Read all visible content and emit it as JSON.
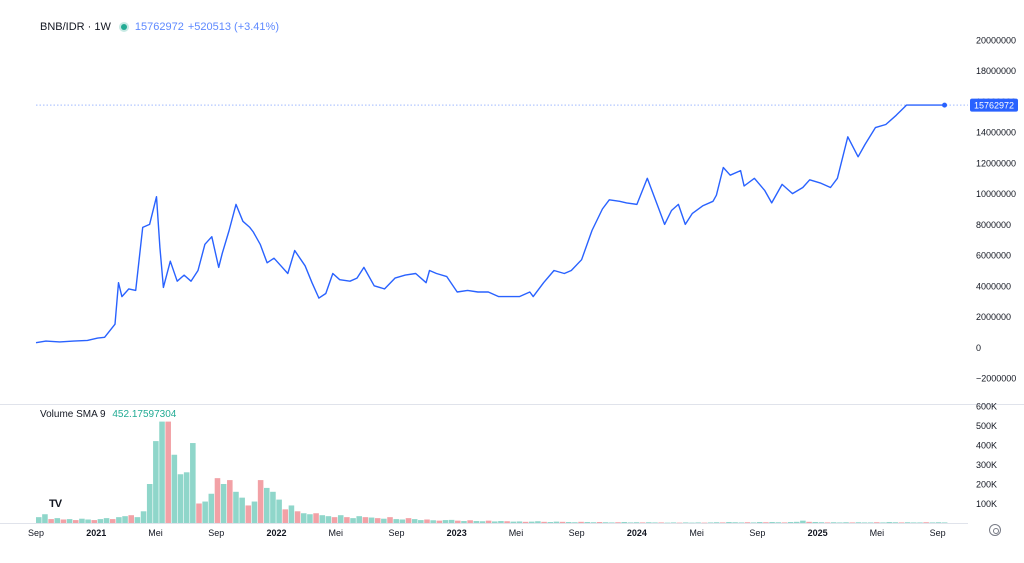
{
  "legend": {
    "symbol": "BNB/IDR · 1W",
    "price": "15762972",
    "change": "+520513 (+3.41%)"
  },
  "volume_legend": {
    "label": "Volume SMA 9",
    "value": "452.17597304"
  },
  "logo_text": "TV",
  "colors": {
    "line": "#2962ff",
    "volume_up": "#8fd6ca",
    "volume_down": "#f2a1a6",
    "price_label_bg": "#2962ff",
    "axis_text": "#131722"
  },
  "chart_data": [
    {
      "type": "line",
      "series": [
        {
          "x": [
            "2020-09-01",
            "2020-09-21",
            "2020-10-19",
            "2020-11-16",
            "2020-12-14",
            "2021-01-04",
            "2021-01-18",
            "2021-02-08",
            "2021-02-15",
            "2021-02-22",
            "2021-03-08",
            "2021-03-22",
            "2021-04-05",
            "2021-04-19",
            "2021-05-03",
            "2021-05-10",
            "2021-05-17",
            "2021-05-31",
            "2021-06-14",
            "2021-06-28",
            "2021-07-12",
            "2021-07-26",
            "2021-08-09",
            "2021-08-23",
            "2021-09-06",
            "2021-09-13",
            "2021-09-27",
            "2021-10-11",
            "2021-10-25",
            "2021-11-08",
            "2021-11-15",
            "2021-11-29",
            "2021-12-13",
            "2021-12-27",
            "2022-01-10",
            "2022-01-24",
            "2022-02-07",
            "2022-02-28",
            "2022-03-14",
            "2022-03-28",
            "2022-04-11",
            "2022-04-25",
            "2022-05-09",
            "2022-05-30",
            "2022-06-13",
            "2022-06-27",
            "2022-07-18",
            "2022-08-08",
            "2022-08-29",
            "2022-09-19",
            "2022-10-10",
            "2022-10-31",
            "2022-11-07",
            "2022-11-21",
            "2022-12-12",
            "2023-01-02",
            "2023-01-23",
            "2023-02-13",
            "2023-03-06",
            "2023-03-27",
            "2023-04-17",
            "2023-05-08",
            "2023-05-29",
            "2023-06-05",
            "2023-06-26",
            "2023-07-17",
            "2023-08-07",
            "2023-08-21",
            "2023-09-11",
            "2023-10-02",
            "2023-10-23",
            "2023-11-06",
            "2023-11-27",
            "2023-12-11",
            "2024-01-01",
            "2024-01-22",
            "2024-02-12",
            "2024-02-26",
            "2024-03-11",
            "2024-03-25",
            "2024-04-08",
            "2024-04-22",
            "2024-05-13",
            "2024-06-03",
            "2024-06-10",
            "2024-06-24",
            "2024-07-08",
            "2024-07-29",
            "2024-08-05",
            "2024-08-26",
            "2024-09-16",
            "2024-09-30",
            "2024-10-21",
            "2024-11-11",
            "2024-12-02",
            "2024-12-16",
            "2025-01-06",
            "2025-01-27",
            "2025-02-10",
            "2025-03-03",
            "2025-03-24",
            "2025-04-07",
            "2025-04-28",
            "2025-05-19",
            "2025-06-09",
            "2025-06-30",
            "2025-07-14",
            "2025-08-04",
            "2025-08-18",
            "2025-09-08",
            "2025-09-15"
          ],
          "y": [
            300000,
            400000,
            350000,
            400000,
            450000,
            600000,
            650000,
            1500000,
            4200000,
            3300000,
            3800000,
            3700000,
            7800000,
            8000000,
            9800000,
            6500000,
            3900000,
            5600000,
            4300000,
            4700000,
            4300000,
            5000000,
            6700000,
            7200000,
            5200000,
            6100000,
            7600000,
            9300000,
            8200000,
            7800000,
            7500000,
            6700000,
            5500000,
            5800000,
            5300000,
            4800000,
            6300000,
            5300000,
            4200000,
            3200000,
            3500000,
            4800000,
            4400000,
            4300000,
            4500000,
            5200000,
            4000000,
            3800000,
            4500000,
            4700000,
            4800000,
            4200000,
            5000000,
            4800000,
            4600000,
            3600000,
            3700000,
            3600000,
            3600000,
            3300000,
            3300000,
            3300000,
            3600000,
            3300000,
            4200000,
            5000000,
            4800000,
            5000000,
            5700000,
            7600000,
            9000000,
            9600000,
            9500000,
            9400000,
            9300000,
            11000000,
            9200000,
            8000000,
            8900000,
            9300000,
            8000000,
            8700000,
            9200000,
            9500000,
            9900000,
            11700000,
            11200000,
            11500000,
            10500000,
            11000000,
            10200000,
            9400000,
            10600000,
            10000000,
            10400000,
            10900000,
            10700000,
            10400000,
            11000000,
            13700000,
            12400000,
            13200000,
            14300000,
            14500000,
            15100000,
            15762972,
            15762972,
            15762972,
            15762972,
            15762972,
            15762972
          ],
          "values_note": ""
        }
      ],
      "y_ticks": [
        "20000000",
        "18000000",
        "16000000",
        "14000000",
        "12000000",
        "10000000",
        "8000000",
        "6000000",
        "4000000",
        "2000000",
        "0",
        "−2000000"
      ],
      "ylim": [
        -2000000,
        20000000
      ],
      "last_price_label": "15762972",
      "last_value": 15762972
    },
    {
      "type": "bar",
      "y_ticks": [
        "600K",
        "500K",
        "400K",
        "300K",
        "200K",
        "100K"
      ],
      "ylim": [
        0,
        600000
      ],
      "bars": [
        {
          "v": 30000,
          "d": false
        },
        {
          "v": 45000,
          "d": false
        },
        {
          "v": 20000,
          "d": true
        },
        {
          "v": 25000,
          "d": false
        },
        {
          "v": 18000,
          "d": true
        },
        {
          "v": 20000,
          "d": false
        },
        {
          "v": 15000,
          "d": true
        },
        {
          "v": 22000,
          "d": false
        },
        {
          "v": 18000,
          "d": false
        },
        {
          "v": 15000,
          "d": true
        },
        {
          "v": 20000,
          "d": false
        },
        {
          "v": 25000,
          "d": false
        },
        {
          "v": 20000,
          "d": true
        },
        {
          "v": 30000,
          "d": false
        },
        {
          "v": 35000,
          "d": false
        },
        {
          "v": 40000,
          "d": true
        },
        {
          "v": 30000,
          "d": false
        },
        {
          "v": 60000,
          "d": false
        },
        {
          "v": 200000,
          "d": false
        },
        {
          "v": 420000,
          "d": false
        },
        {
          "v": 520000,
          "d": false
        },
        {
          "v": 520000,
          "d": true
        },
        {
          "v": 350000,
          "d": false
        },
        {
          "v": 250000,
          "d": false
        },
        {
          "v": 260000,
          "d": false
        },
        {
          "v": 410000,
          "d": false
        },
        {
          "v": 100000,
          "d": true
        },
        {
          "v": 110000,
          "d": false
        },
        {
          "v": 150000,
          "d": false
        },
        {
          "v": 230000,
          "d": true
        },
        {
          "v": 200000,
          "d": false
        },
        {
          "v": 220000,
          "d": true
        },
        {
          "v": 160000,
          "d": false
        },
        {
          "v": 130000,
          "d": false
        },
        {
          "v": 90000,
          "d": true
        },
        {
          "v": 110000,
          "d": false
        },
        {
          "v": 220000,
          "d": true
        },
        {
          "v": 180000,
          "d": false
        },
        {
          "v": 160000,
          "d": false
        },
        {
          "v": 120000,
          "d": false
        },
        {
          "v": 70000,
          "d": true
        },
        {
          "v": 90000,
          "d": false
        },
        {
          "v": 60000,
          "d": true
        },
        {
          "v": 50000,
          "d": false
        },
        {
          "v": 45000,
          "d": false
        },
        {
          "v": 50000,
          "d": true
        },
        {
          "v": 40000,
          "d": false
        },
        {
          "v": 35000,
          "d": false
        },
        {
          "v": 30000,
          "d": true
        },
        {
          "v": 40000,
          "d": false
        },
        {
          "v": 30000,
          "d": true
        },
        {
          "v": 25000,
          "d": false
        },
        {
          "v": 35000,
          "d": false
        },
        {
          "v": 30000,
          "d": true
        },
        {
          "v": 28000,
          "d": false
        },
        {
          "v": 25000,
          "d": true
        },
        {
          "v": 22000,
          "d": false
        },
        {
          "v": 30000,
          "d": true
        },
        {
          "v": 20000,
          "d": false
        },
        {
          "v": 18000,
          "d": false
        },
        {
          "v": 25000,
          "d": true
        },
        {
          "v": 20000,
          "d": false
        },
        {
          "v": 15000,
          "d": false
        },
        {
          "v": 18000,
          "d": true
        },
        {
          "v": 14000,
          "d": false
        },
        {
          "v": 12000,
          "d": true
        },
        {
          "v": 15000,
          "d": false
        },
        {
          "v": 16000,
          "d": false
        },
        {
          "v": 12000,
          "d": true
        },
        {
          "v": 10000,
          "d": false
        },
        {
          "v": 14000,
          "d": true
        },
        {
          "v": 10000,
          "d": false
        },
        {
          "v": 9000,
          "d": false
        },
        {
          "v": 12000,
          "d": true
        },
        {
          "v": 8000,
          "d": false
        },
        {
          "v": 10000,
          "d": false
        },
        {
          "v": 9000,
          "d": true
        },
        {
          "v": 7000,
          "d": false
        },
        {
          "v": 8000,
          "d": false
        },
        {
          "v": 6000,
          "d": true
        },
        {
          "v": 7000,
          "d": false
        },
        {
          "v": 9000,
          "d": false
        },
        {
          "v": 6000,
          "d": true
        },
        {
          "v": 5000,
          "d": false
        },
        {
          "v": 7000,
          "d": false
        },
        {
          "v": 6000,
          "d": true
        },
        {
          "v": 5000,
          "d": false
        },
        {
          "v": 4000,
          "d": false
        },
        {
          "v": 6000,
          "d": true
        },
        {
          "v": 5000,
          "d": false
        },
        {
          "v": 4000,
          "d": false
        },
        {
          "v": 5000,
          "d": true
        },
        {
          "v": 4000,
          "d": false
        },
        {
          "v": 3000,
          "d": false
        },
        {
          "v": 4000,
          "d": true
        },
        {
          "v": 5000,
          "d": false
        },
        {
          "v": 3000,
          "d": false
        },
        {
          "v": 4000,
          "d": false
        },
        {
          "v": 3000,
          "d": true
        },
        {
          "v": 4000,
          "d": false
        },
        {
          "v": 3000,
          "d": false
        },
        {
          "v": 3000,
          "d": true
        },
        {
          "v": 2000,
          "d": false
        },
        {
          "v": 3000,
          "d": false
        },
        {
          "v": 2000,
          "d": true
        },
        {
          "v": 3000,
          "d": false
        },
        {
          "v": 2000,
          "d": false
        },
        {
          "v": 3000,
          "d": false
        },
        {
          "v": 2000,
          "d": true
        },
        {
          "v": 3000,
          "d": false
        },
        {
          "v": 4000,
          "d": false
        },
        {
          "v": 3000,
          "d": true
        },
        {
          "v": 5000,
          "d": false
        },
        {
          "v": 4000,
          "d": false
        },
        {
          "v": 3000,
          "d": false
        },
        {
          "v": 4000,
          "d": true
        },
        {
          "v": 3000,
          "d": false
        },
        {
          "v": 5000,
          "d": false
        },
        {
          "v": 4000,
          "d": true
        },
        {
          "v": 5000,
          "d": false
        },
        {
          "v": 4000,
          "d": false
        },
        {
          "v": 3000,
          "d": true
        },
        {
          "v": 5000,
          "d": false
        },
        {
          "v": 6000,
          "d": false
        },
        {
          "v": 12000,
          "d": false
        },
        {
          "v": 6000,
          "d": true
        },
        {
          "v": 5000,
          "d": false
        },
        {
          "v": 4000,
          "d": false
        },
        {
          "v": 3000,
          "d": true
        },
        {
          "v": 4000,
          "d": false
        },
        {
          "v": 3000,
          "d": false
        },
        {
          "v": 4000,
          "d": false
        },
        {
          "v": 3000,
          "d": true
        },
        {
          "v": 4000,
          "d": false
        },
        {
          "v": 3000,
          "d": false
        },
        {
          "v": 3000,
          "d": false
        },
        {
          "v": 4000,
          "d": true
        },
        {
          "v": 3000,
          "d": false
        },
        {
          "v": 5000,
          "d": false
        },
        {
          "v": 4000,
          "d": false
        },
        {
          "v": 3000,
          "d": true
        },
        {
          "v": 4000,
          "d": false
        },
        {
          "v": 3000,
          "d": false
        },
        {
          "v": 3000,
          "d": false
        },
        {
          "v": 4000,
          "d": true
        },
        {
          "v": 3000,
          "d": false
        },
        {
          "v": 4000,
          "d": false
        },
        {
          "v": 3000,
          "d": false
        }
      ]
    }
  ],
  "x_axis": {
    "ticks": [
      {
        "label": "Sep",
        "date": "2020-09-01",
        "bold": false
      },
      {
        "label": "2021",
        "date": "2021-01-01",
        "bold": true
      },
      {
        "label": "Mei",
        "date": "2021-05-01",
        "bold": false
      },
      {
        "label": "Sep",
        "date": "2021-09-01",
        "bold": false
      },
      {
        "label": "2022",
        "date": "2022-01-01",
        "bold": true
      },
      {
        "label": "Mei",
        "date": "2022-05-01",
        "bold": false
      },
      {
        "label": "Sep",
        "date": "2022-09-01",
        "bold": false
      },
      {
        "label": "2023",
        "date": "2023-01-01",
        "bold": true
      },
      {
        "label": "Mei",
        "date": "2023-05-01",
        "bold": false
      },
      {
        "label": "Sep",
        "date": "2023-09-01",
        "bold": false
      },
      {
        "label": "2024",
        "date": "2024-01-01",
        "bold": true
      },
      {
        "label": "Mei",
        "date": "2024-05-01",
        "bold": false
      },
      {
        "label": "Sep",
        "date": "2024-09-01",
        "bold": false
      },
      {
        "label": "2025",
        "date": "2025-01-01",
        "bold": true
      },
      {
        "label": "Mei",
        "date": "2025-05-01",
        "bold": false
      },
      {
        "label": "Sep",
        "date": "2025-09-01",
        "bold": false
      }
    ],
    "range": [
      "2020-09-01",
      "2025-09-22"
    ]
  }
}
